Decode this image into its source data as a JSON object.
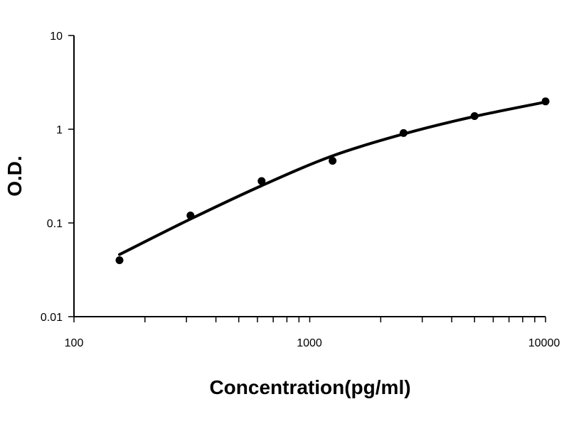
{
  "chart_data": {
    "type": "scatter",
    "title": "",
    "xlabel": "Concentration(pg/ml)",
    "ylabel": "O.D.",
    "xscale": "log",
    "yscale": "log",
    "xlim": [
      100,
      10000
    ],
    "ylim": [
      0.01,
      10
    ],
    "x_tick_labels": [
      "100",
      "1000",
      "10000"
    ],
    "y_tick_labels": [
      "0.01",
      "0.1",
      "1",
      "10"
    ],
    "grid": false,
    "legend": "none",
    "series": [
      {
        "style": "markers",
        "x": [
          156,
          312,
          625,
          1250,
          2500,
          5000,
          10000
        ],
        "y": [
          0.04,
          0.12,
          0.28,
          0.46,
          0.91,
          1.38,
          1.98
        ]
      },
      {
        "style": "line",
        "x": [
          156,
          312,
          625,
          1250,
          2500,
          5000,
          10000
        ],
        "y": [
          0.046,
          0.11,
          0.25,
          0.52,
          0.89,
          1.37,
          1.95
        ]
      }
    ]
  }
}
